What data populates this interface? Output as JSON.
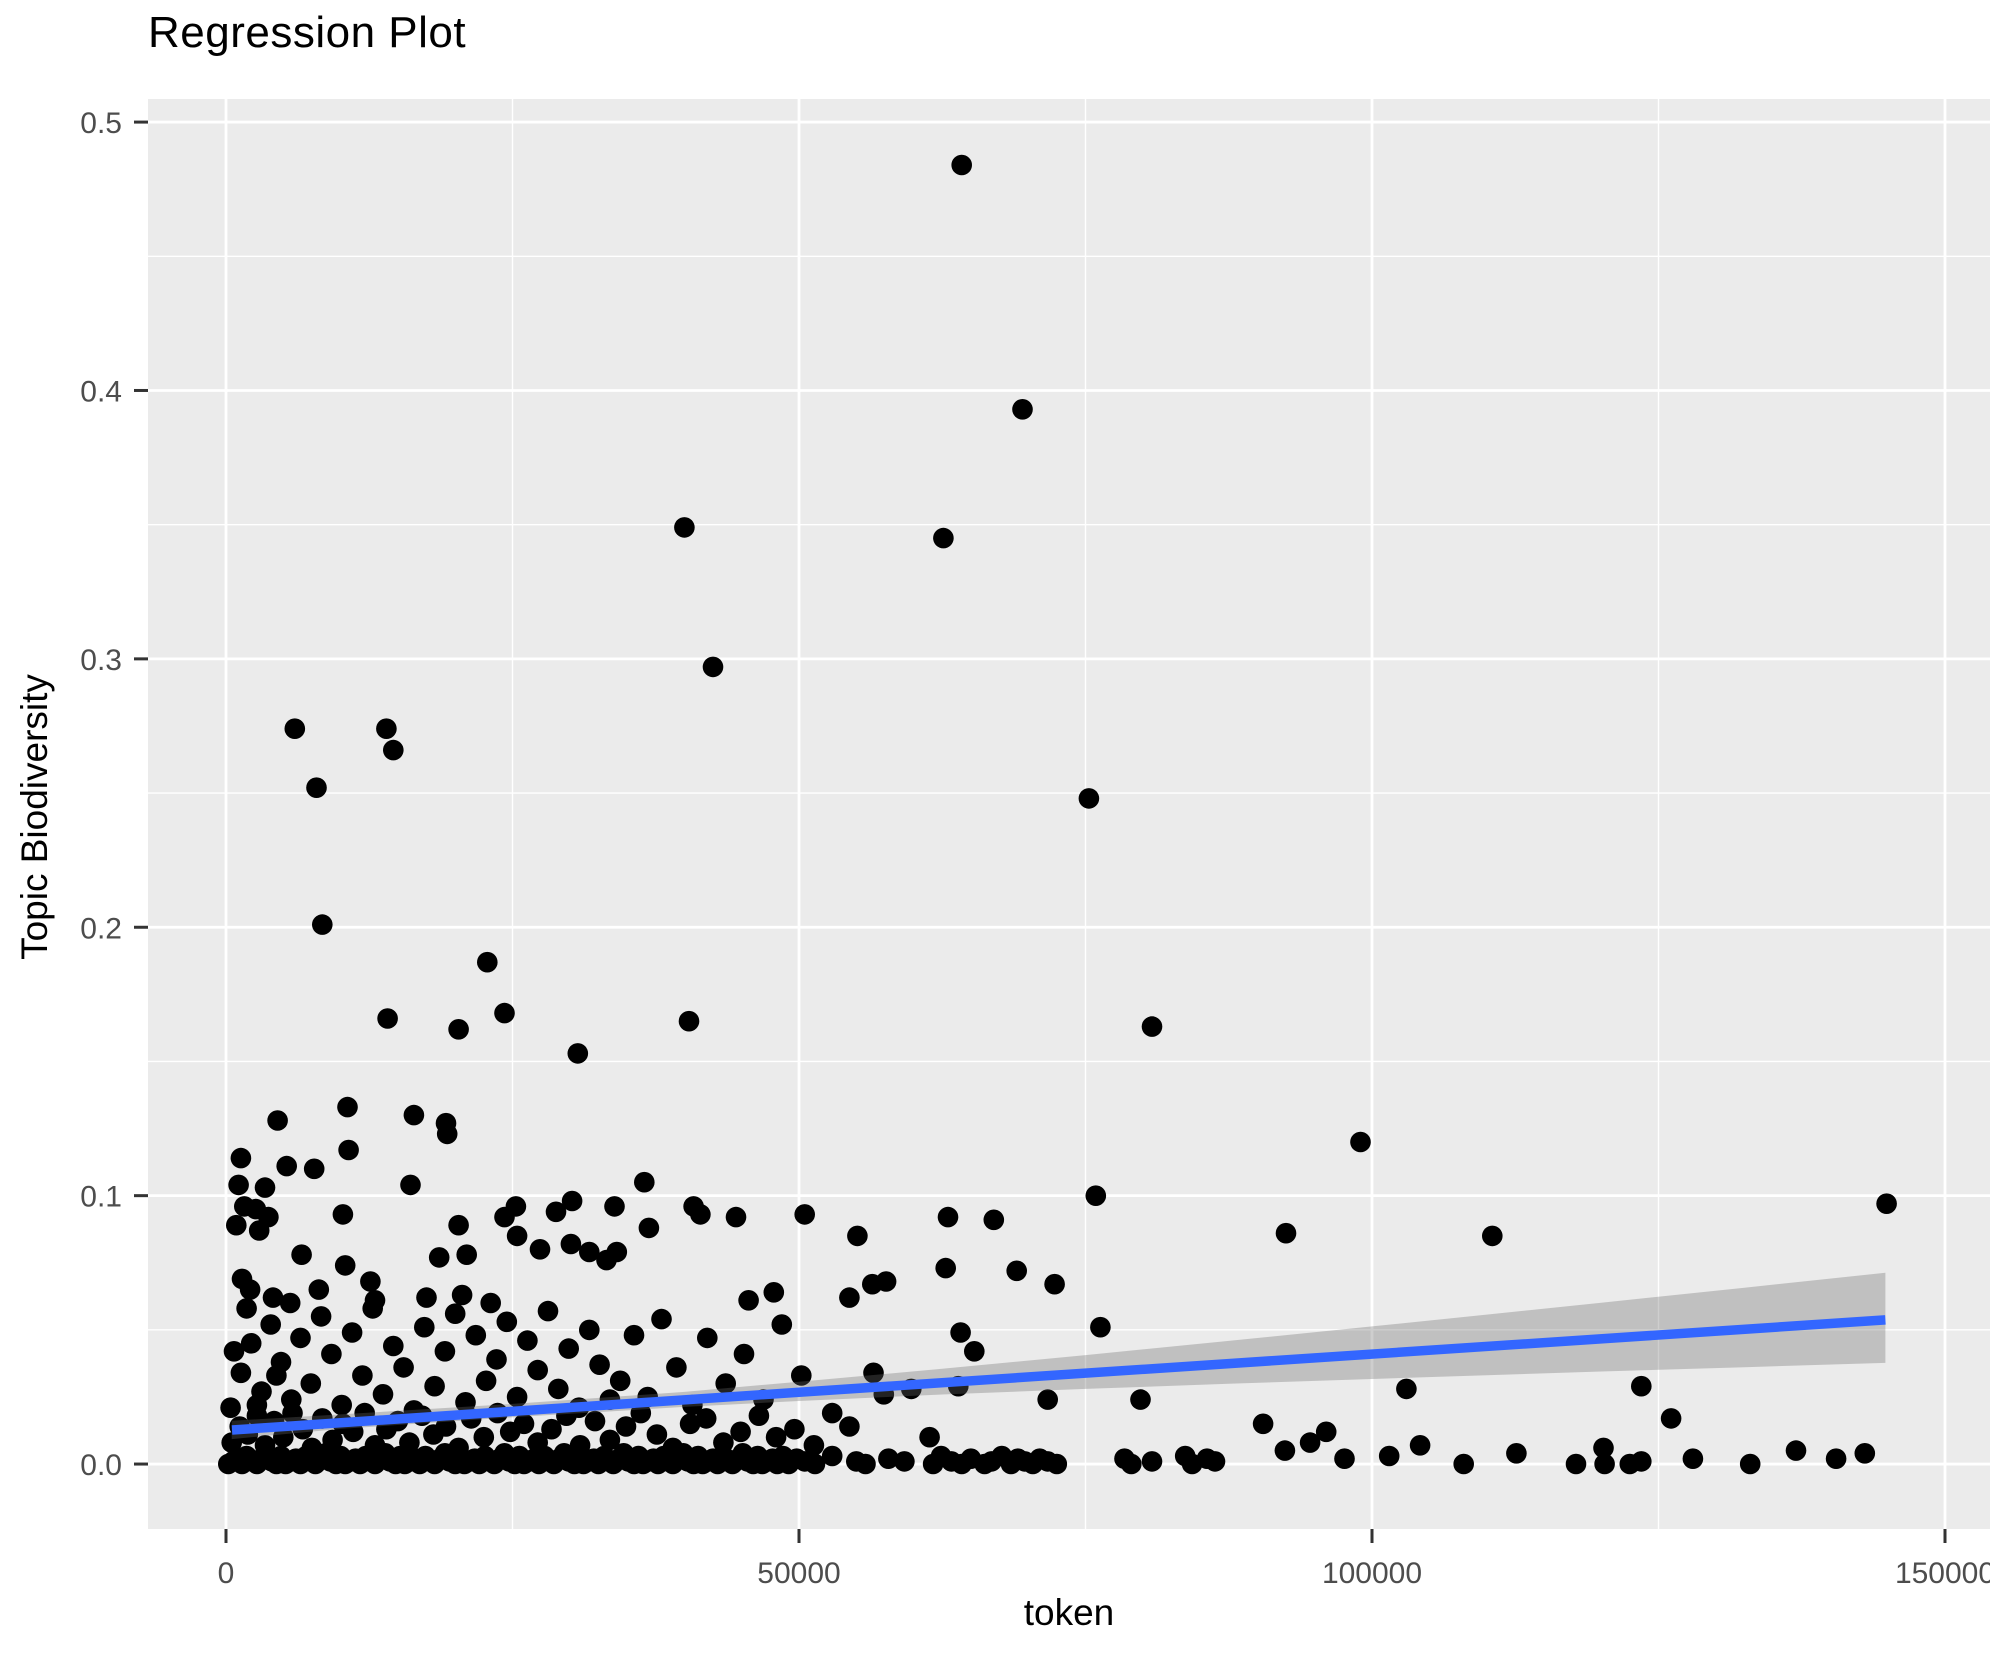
{
  "title": "Regression Plot",
  "axes": {
    "x": {
      "label": "token",
      "ticks": [
        0,
        50000,
        100000,
        150000
      ],
      "tick_labels": [
        "0",
        "50000",
        "100000",
        "150000"
      ],
      "minor": [
        25000,
        75000,
        125000
      ]
    },
    "y": {
      "label": "Topic Biodiversity",
      "ticks": [
        0.0,
        0.1,
        0.2,
        0.3,
        0.4,
        0.5
      ],
      "tick_labels": [
        "0.0",
        "0.1",
        "0.2",
        "0.3",
        "0.4",
        "0.5"
      ],
      "minor": [
        0.05,
        0.15,
        0.25,
        0.35,
        0.45
      ]
    }
  },
  "style": {
    "panel_bg": "#EBEBEB",
    "grid_color": "#FFFFFF",
    "point_color": "#000000",
    "line_color": "#3366FF",
    "band_color": "rgba(107,107,107,0.33)",
    "tick_mark_color": "#333333",
    "tick_text_color": "#4D4D4D"
  },
  "chart_data": {
    "type": "scatter",
    "title": "Regression Plot",
    "xlabel": "token",
    "ylabel": "Topic Biodiversity",
    "xlim": [
      -6806,
      153927
    ],
    "ylim": [
      -0.0242,
      0.5086
    ],
    "grid": true,
    "legend": false,
    "points": [
      [
        64200,
        0.484
      ],
      [
        69500,
        0.393
      ],
      [
        40000,
        0.349
      ],
      [
        62600,
        0.345
      ],
      [
        42500,
        0.297
      ],
      [
        6000,
        0.274
      ],
      [
        14000,
        0.274
      ],
      [
        14600,
        0.266
      ],
      [
        7900,
        0.252
      ],
      [
        75300,
        0.248
      ],
      [
        8400,
        0.201
      ],
      [
        22800,
        0.187
      ],
      [
        40400,
        0.165
      ],
      [
        24300,
        0.168
      ],
      [
        14100,
        0.166
      ],
      [
        20300,
        0.162
      ],
      [
        30700,
        0.153
      ],
      [
        80800,
        0.163
      ],
      [
        99000,
        0.12
      ],
      [
        4500,
        0.128
      ],
      [
        10600,
        0.133
      ],
      [
        16400,
        0.13
      ],
      [
        19200,
        0.127
      ],
      [
        19300,
        0.123
      ],
      [
        10700,
        0.117
      ],
      [
        1300,
        0.114
      ],
      [
        5300,
        0.111
      ],
      [
        7700,
        0.11
      ],
      [
        1100,
        0.104
      ],
      [
        3400,
        0.103
      ],
      [
        16100,
        0.104
      ],
      [
        36500,
        0.105
      ],
      [
        30200,
        0.098
      ],
      [
        33900,
        0.096
      ],
      [
        28800,
        0.094
      ],
      [
        1600,
        0.096
      ],
      [
        2600,
        0.095
      ],
      [
        900,
        0.089
      ],
      [
        2900,
        0.087
      ],
      [
        3700,
        0.092
      ],
      [
        10200,
        0.093
      ],
      [
        20300,
        0.089
      ],
      [
        25300,
        0.096
      ],
      [
        24300,
        0.092
      ],
      [
        25400,
        0.085
      ],
      [
        30100,
        0.082
      ],
      [
        31700,
        0.079
      ],
      [
        33200,
        0.076
      ],
      [
        27400,
        0.08
      ],
      [
        34100,
        0.079
      ],
      [
        36900,
        0.088
      ],
      [
        40800,
        0.096
      ],
      [
        41400,
        0.093
      ],
      [
        44500,
        0.092
      ],
      [
        50500,
        0.093
      ],
      [
        18600,
        0.077
      ],
      [
        21000,
        0.078
      ],
      [
        6600,
        0.078
      ],
      [
        10400,
        0.074
      ],
      [
        12600,
        0.068
      ],
      [
        8100,
        0.065
      ],
      [
        5600,
        0.06
      ],
      [
        2100,
        0.065
      ],
      [
        1400,
        0.069
      ],
      [
        4100,
        0.062
      ],
      [
        13000,
        0.061
      ],
      [
        17500,
        0.062
      ],
      [
        20600,
        0.063
      ],
      [
        23100,
        0.06
      ],
      [
        47800,
        0.064
      ],
      [
        45600,
        0.061
      ],
      [
        55100,
        0.085
      ],
      [
        92500,
        0.086
      ],
      [
        110500,
        0.085
      ],
      [
        144900,
        0.097
      ],
      [
        75900,
        0.1
      ],
      [
        67000,
        0.091
      ],
      [
        63000,
        0.092
      ],
      [
        62800,
        0.073
      ],
      [
        69000,
        0.072
      ],
      [
        72300,
        0.067
      ],
      [
        54400,
        0.062
      ],
      [
        56400,
        0.067
      ],
      [
        57600,
        0.068
      ],
      [
        64100,
        0.049
      ],
      [
        65300,
        0.042
      ],
      [
        56500,
        0.034
      ],
      [
        57400,
        0.026
      ],
      [
        59800,
        0.028
      ],
      [
        63900,
        0.029
      ],
      [
        71700,
        0.024
      ],
      [
        79800,
        0.024
      ],
      [
        76300,
        0.051
      ],
      [
        103000,
        0.028
      ],
      [
        123500,
        0.029
      ],
      [
        400,
        0.021
      ],
      [
        1300,
        0.034
      ],
      [
        2200,
        0.045
      ],
      [
        3100,
        0.027
      ],
      [
        3900,
        0.052
      ],
      [
        4800,
        0.038
      ],
      [
        5700,
        0.024
      ],
      [
        6500,
        0.047
      ],
      [
        7400,
        0.03
      ],
      [
        8300,
        0.055
      ],
      [
        9200,
        0.041
      ],
      [
        10100,
        0.022
      ],
      [
        11000,
        0.049
      ],
      [
        11900,
        0.033
      ],
      [
        12800,
        0.058
      ],
      [
        13700,
        0.026
      ],
      [
        14600,
        0.044
      ],
      [
        15500,
        0.036
      ],
      [
        16400,
        0.02
      ],
      [
        17300,
        0.051
      ],
      [
        18200,
        0.029
      ],
      [
        19100,
        0.042
      ],
      [
        20000,
        0.056
      ],
      [
        20900,
        0.023
      ],
      [
        21800,
        0.048
      ],
      [
        22700,
        0.031
      ],
      [
        23600,
        0.039
      ],
      [
        24500,
        0.053
      ],
      [
        25400,
        0.025
      ],
      [
        26300,
        0.046
      ],
      [
        27200,
        0.035
      ],
      [
        28100,
        0.057
      ],
      [
        29000,
        0.028
      ],
      [
        29900,
        0.043
      ],
      [
        30800,
        0.021
      ],
      [
        31700,
        0.05
      ],
      [
        32600,
        0.037
      ],
      [
        33500,
        0.024
      ],
      [
        34400,
        0.031
      ],
      [
        35600,
        0.048
      ],
      [
        36800,
        0.025
      ],
      [
        38000,
        0.054
      ],
      [
        39300,
        0.036
      ],
      [
        40700,
        0.022
      ],
      [
        42000,
        0.047
      ],
      [
        43600,
        0.03
      ],
      [
        45200,
        0.041
      ],
      [
        46900,
        0.024
      ],
      [
        48500,
        0.052
      ],
      [
        50200,
        0.033
      ],
      [
        1800,
        0.058
      ],
      [
        2700,
        0.022
      ],
      [
        700,
        0.042
      ],
      [
        4400,
        0.033
      ],
      [
        54400,
        0.014
      ],
      [
        61400,
        0.01
      ],
      [
        94600,
        0.008
      ],
      [
        104200,
        0.007
      ],
      [
        120200,
        0.006
      ],
      [
        126100,
        0.017
      ],
      [
        96000,
        0.012
      ],
      [
        90500,
        0.015
      ],
      [
        500,
        0.008
      ],
      [
        1200,
        0.014
      ],
      [
        1900,
        0.011
      ],
      [
        2700,
        0.018
      ],
      [
        3400,
        0.007
      ],
      [
        4200,
        0.016
      ],
      [
        5000,
        0.01
      ],
      [
        5800,
        0.019
      ],
      [
        6700,
        0.013
      ],
      [
        7500,
        0.006
      ],
      [
        8400,
        0.017
      ],
      [
        9300,
        0.009
      ],
      [
        10200,
        0.015
      ],
      [
        11100,
        0.012
      ],
      [
        12100,
        0.019
      ],
      [
        13000,
        0.007
      ],
      [
        14000,
        0.013
      ],
      [
        15000,
        0.016
      ],
      [
        16000,
        0.008
      ],
      [
        17100,
        0.018
      ],
      [
        18100,
        0.011
      ],
      [
        19200,
        0.014
      ],
      [
        20300,
        0.006
      ],
      [
        21400,
        0.017
      ],
      [
        22500,
        0.01
      ],
      [
        23700,
        0.019
      ],
      [
        24800,
        0.012
      ],
      [
        26000,
        0.015
      ],
      [
        27200,
        0.008
      ],
      [
        28400,
        0.013
      ],
      [
        29700,
        0.018
      ],
      [
        30900,
        0.007
      ],
      [
        32200,
        0.016
      ],
      [
        33500,
        0.009
      ],
      [
        34900,
        0.014
      ],
      [
        36200,
        0.019
      ],
      [
        37600,
        0.011
      ],
      [
        39000,
        0.006
      ],
      [
        40500,
        0.015
      ],
      [
        41900,
        0.017
      ],
      [
        43400,
        0.008
      ],
      [
        44900,
        0.012
      ],
      [
        46500,
        0.018
      ],
      [
        48000,
        0.01
      ],
      [
        49600,
        0.013
      ],
      [
        51300,
        0.007
      ],
      [
        52900,
        0.019
      ],
      [
        200,
        0
      ],
      [
        600,
        0.001
      ],
      [
        1000,
        0.002
      ],
      [
        1400,
        0
      ],
      [
        1800,
        0.003
      ],
      [
        2300,
        0.001
      ],
      [
        2700,
        0
      ],
      [
        3100,
        0.002
      ],
      [
        3500,
        0.004
      ],
      [
        4000,
        0.001
      ],
      [
        4400,
        0
      ],
      [
        4800,
        0.003
      ],
      [
        5200,
        0
      ],
      [
        5700,
        0.001
      ],
      [
        6100,
        0.002
      ],
      [
        6500,
        0
      ],
      [
        7000,
        0.003
      ],
      [
        7400,
        0.001
      ],
      [
        7800,
        0
      ],
      [
        8300,
        0.002
      ],
      [
        8700,
        0.004
      ],
      [
        9100,
        0.001
      ],
      [
        9600,
        0
      ],
      [
        10000,
        0.003
      ],
      [
        10400,
        0
      ],
      [
        10900,
        0.001
      ],
      [
        11300,
        0.002
      ],
      [
        11700,
        0
      ],
      [
        12200,
        0.003
      ],
      [
        12600,
        0.001
      ],
      [
        13000,
        0
      ],
      [
        13500,
        0.002
      ],
      [
        13900,
        0.004
      ],
      [
        14300,
        0.001
      ],
      [
        14800,
        0
      ],
      [
        15200,
        0.003
      ],
      [
        15600,
        0
      ],
      [
        16100,
        0.001
      ],
      [
        16500,
        0.002
      ],
      [
        16900,
        0
      ],
      [
        17400,
        0.003
      ],
      [
        17800,
        0.001
      ],
      [
        18200,
        0
      ],
      [
        18700,
        0.002
      ],
      [
        19100,
        0.004
      ],
      [
        19500,
        0.001
      ],
      [
        20000,
        0
      ],
      [
        20400,
        0.003
      ],
      [
        20800,
        0
      ],
      [
        21300,
        0.001
      ],
      [
        21700,
        0.002
      ],
      [
        22100,
        0
      ],
      [
        22600,
        0.003
      ],
      [
        23000,
        0.001
      ],
      [
        23400,
        0
      ],
      [
        23900,
        0.002
      ],
      [
        24300,
        0.004
      ],
      [
        24700,
        0.001
      ],
      [
        25200,
        0
      ],
      [
        25600,
        0.003
      ],
      [
        26000,
        0
      ],
      [
        26500,
        0.001
      ],
      [
        26900,
        0.002
      ],
      [
        27300,
        0
      ],
      [
        27800,
        0.003
      ],
      [
        28200,
        0.001
      ],
      [
        28600,
        0
      ],
      [
        29100,
        0.002
      ],
      [
        29500,
        0.004
      ],
      [
        29900,
        0.001
      ],
      [
        30400,
        0
      ],
      [
        30800,
        0.003
      ],
      [
        31200,
        0
      ],
      [
        31700,
        0.001
      ],
      [
        32100,
        0.002
      ],
      [
        32500,
        0
      ],
      [
        33000,
        0.003
      ],
      [
        33400,
        0.001
      ],
      [
        33800,
        0
      ],
      [
        34300,
        0.002
      ],
      [
        34700,
        0.004
      ],
      [
        35100,
        0.001
      ],
      [
        35600,
        0
      ],
      [
        36000,
        0.003
      ],
      [
        36400,
        0
      ],
      [
        36900,
        0.001
      ],
      [
        37300,
        0.002
      ],
      [
        37700,
        0
      ],
      [
        38200,
        0.003
      ],
      [
        38600,
        0.001
      ],
      [
        39000,
        0
      ],
      [
        39500,
        0.002
      ],
      [
        39900,
        0.004
      ],
      [
        40300,
        0.001
      ],
      [
        40800,
        0
      ],
      [
        41200,
        0.003
      ],
      [
        41600,
        0
      ],
      [
        42100,
        0.001
      ],
      [
        42500,
        0.002
      ],
      [
        42900,
        0
      ],
      [
        43400,
        0.003
      ],
      [
        43800,
        0.001
      ],
      [
        44200,
        0
      ],
      [
        44700,
        0.002
      ],
      [
        45100,
        0.004
      ],
      [
        45500,
        0.001
      ],
      [
        46000,
        0
      ],
      [
        46400,
        0.003
      ],
      [
        46800,
        0
      ],
      [
        47300,
        0.001
      ],
      [
        47700,
        0.002
      ],
      [
        48100,
        0
      ],
      [
        48600,
        0.003
      ],
      [
        49000,
        0.001
      ],
      [
        49100,
        0
      ],
      [
        49800,
        0.002
      ],
      [
        50500,
        0.001
      ],
      [
        51400,
        0
      ],
      [
        52900,
        0.003
      ],
      [
        55000,
        0.001
      ],
      [
        55800,
        0
      ],
      [
        57800,
        0.002
      ],
      [
        59200,
        0.001
      ],
      [
        61700,
        0
      ],
      [
        62400,
        0.003
      ],
      [
        63300,
        0.001
      ],
      [
        64200,
        0
      ],
      [
        65000,
        0.002
      ],
      [
        66200,
        0
      ],
      [
        66800,
        0.001
      ],
      [
        67700,
        0.003
      ],
      [
        68500,
        0
      ],
      [
        69100,
        0.002
      ],
      [
        69700,
        0.001
      ],
      [
        70400,
        0
      ],
      [
        71000,
        0.002
      ],
      [
        71700,
        0.001
      ],
      [
        72500,
        0
      ],
      [
        78400,
        0.002
      ],
      [
        79000,
        0
      ],
      [
        80800,
        0.001
      ],
      [
        83700,
        0.003
      ],
      [
        84300,
        0
      ],
      [
        85600,
        0.002
      ],
      [
        86300,
        0.001
      ],
      [
        92400,
        0.005
      ],
      [
        97600,
        0.002
      ],
      [
        101500,
        0.003
      ],
      [
        108000,
        0
      ],
      [
        112600,
        0.004
      ],
      [
        117800,
        0
      ],
      [
        120300,
        0
      ],
      [
        122500,
        0
      ],
      [
        123500,
        0.001
      ],
      [
        128000,
        0.002
      ],
      [
        133000,
        0
      ],
      [
        137000,
        0.005
      ],
      [
        140500,
        0.002
      ],
      [
        143000,
        0.004
      ]
    ],
    "regression": {
      "type": "linear",
      "x": [
        520,
        144800
      ],
      "y": [
        0.0127,
        0.0537
      ],
      "ci": [
        [
          500,
          0.0093,
          0.0161
        ],
        [
          10000,
          0.0131,
          0.0185
        ],
        [
          25000,
          0.0174,
          0.0224
        ],
        [
          40000,
          0.0213,
          0.0269
        ],
        [
          50000,
          0.0235,
          0.0307
        ],
        [
          62500,
          0.0259,
          0.0355
        ],
        [
          75000,
          0.028,
          0.0406
        ],
        [
          87500,
          0.0299,
          0.0459
        ],
        [
          100000,
          0.0317,
          0.0513
        ],
        [
          110000,
          0.0331,
          0.0557
        ],
        [
          120000,
          0.0345,
          0.0601
        ],
        [
          132500,
          0.0361,
          0.0657
        ],
        [
          144800,
          0.0377,
          0.0713
        ]
      ]
    }
  }
}
